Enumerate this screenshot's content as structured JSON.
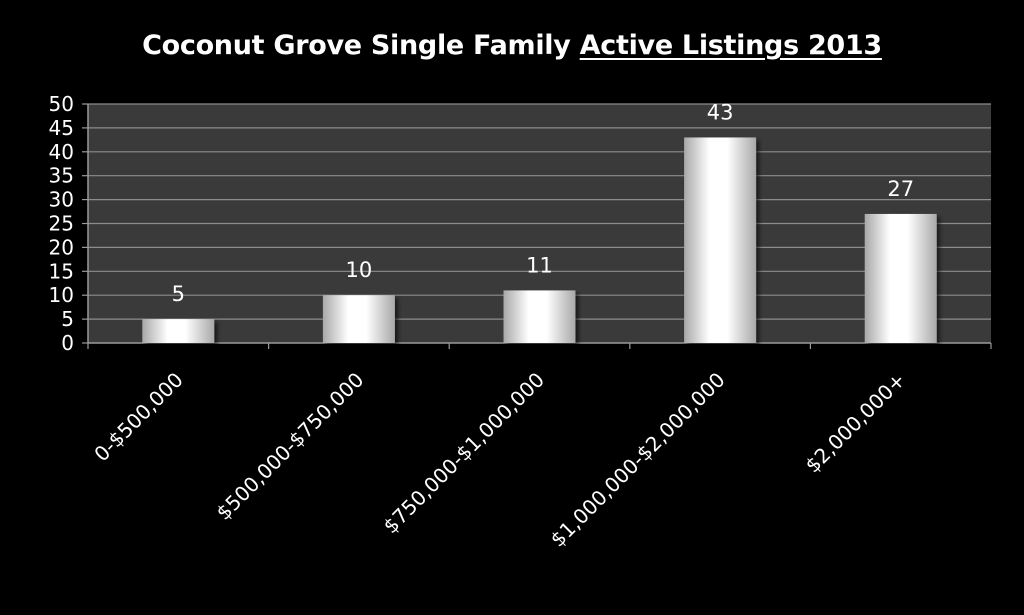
{
  "chart": {
    "title_main": "Coconut Grove Single Family",
    "title_emphasis": "Active Listings 2013",
    "colors": {
      "page_background": "#000000",
      "plot_background": "#3a3a3a",
      "gridline": "#8c8c8c",
      "axis": "#9a9a9a",
      "text": "#ffffff",
      "bar_light": "#ffffff",
      "bar_shade": "#a8a8a8"
    }
  },
  "chart_data": {
    "type": "bar",
    "title": "Coconut Grove Single Family Active Listings 2013",
    "categories": [
      "0-$500,000",
      "$500,000-$750,000",
      "$750,000-$1,000,000",
      "$1,000,000-$2,000,000",
      "$2,000,000+"
    ],
    "values": [
      5,
      10,
      11,
      43,
      27
    ],
    "data_labels": [
      "5",
      "10",
      "11",
      "43",
      "27"
    ],
    "xlabel": "",
    "ylabel": "",
    "ylim": [
      0,
      50
    ],
    "yticks": [
      0,
      5,
      10,
      15,
      20,
      25,
      30,
      35,
      40,
      45,
      50
    ],
    "ytick_labels": [
      "0",
      "5",
      "10",
      "15",
      "20",
      "25",
      "30",
      "35",
      "40",
      "45",
      "50"
    ],
    "grid": true,
    "legend": false,
    "xtick_rotation": "-45deg"
  }
}
